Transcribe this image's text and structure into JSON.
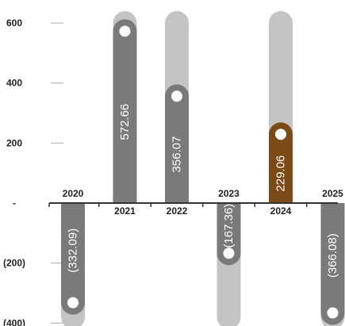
{
  "chart_data": {
    "type": "bar",
    "title": "",
    "xlabel": "",
    "ylabel": "",
    "categories": [
      "2020",
      "2021",
      "2022",
      "2023",
      "2024",
      "2025"
    ],
    "values": [
      -332.09,
      572.66,
      356.07,
      -167.36,
      229.06,
      -366.08
    ],
    "value_labels": [
      "(332.09)",
      "572.66",
      "356.07",
      "(167.36)",
      "229.06",
      "(366.08)"
    ],
    "background_track_values": [
      -380,
      600,
      600,
      -380,
      600,
      -380
    ],
    "y_ticks": [
      600,
      400,
      200,
      0,
      -200,
      -400
    ],
    "y_tick_labels": [
      "600",
      "400",
      "200",
      "-",
      "(200)",
      "(400)"
    ],
    "ylim": [
      -400,
      600
    ],
    "grid": false,
    "legend": "none",
    "highlight_category": "2024",
    "colors": {
      "bar": "#7a7a7a",
      "highlight": "#7b4a16",
      "track": "#c4c4c4",
      "marker": "#ffffff",
      "axis": "#333333",
      "tick_line": "#aaaaaa"
    }
  }
}
